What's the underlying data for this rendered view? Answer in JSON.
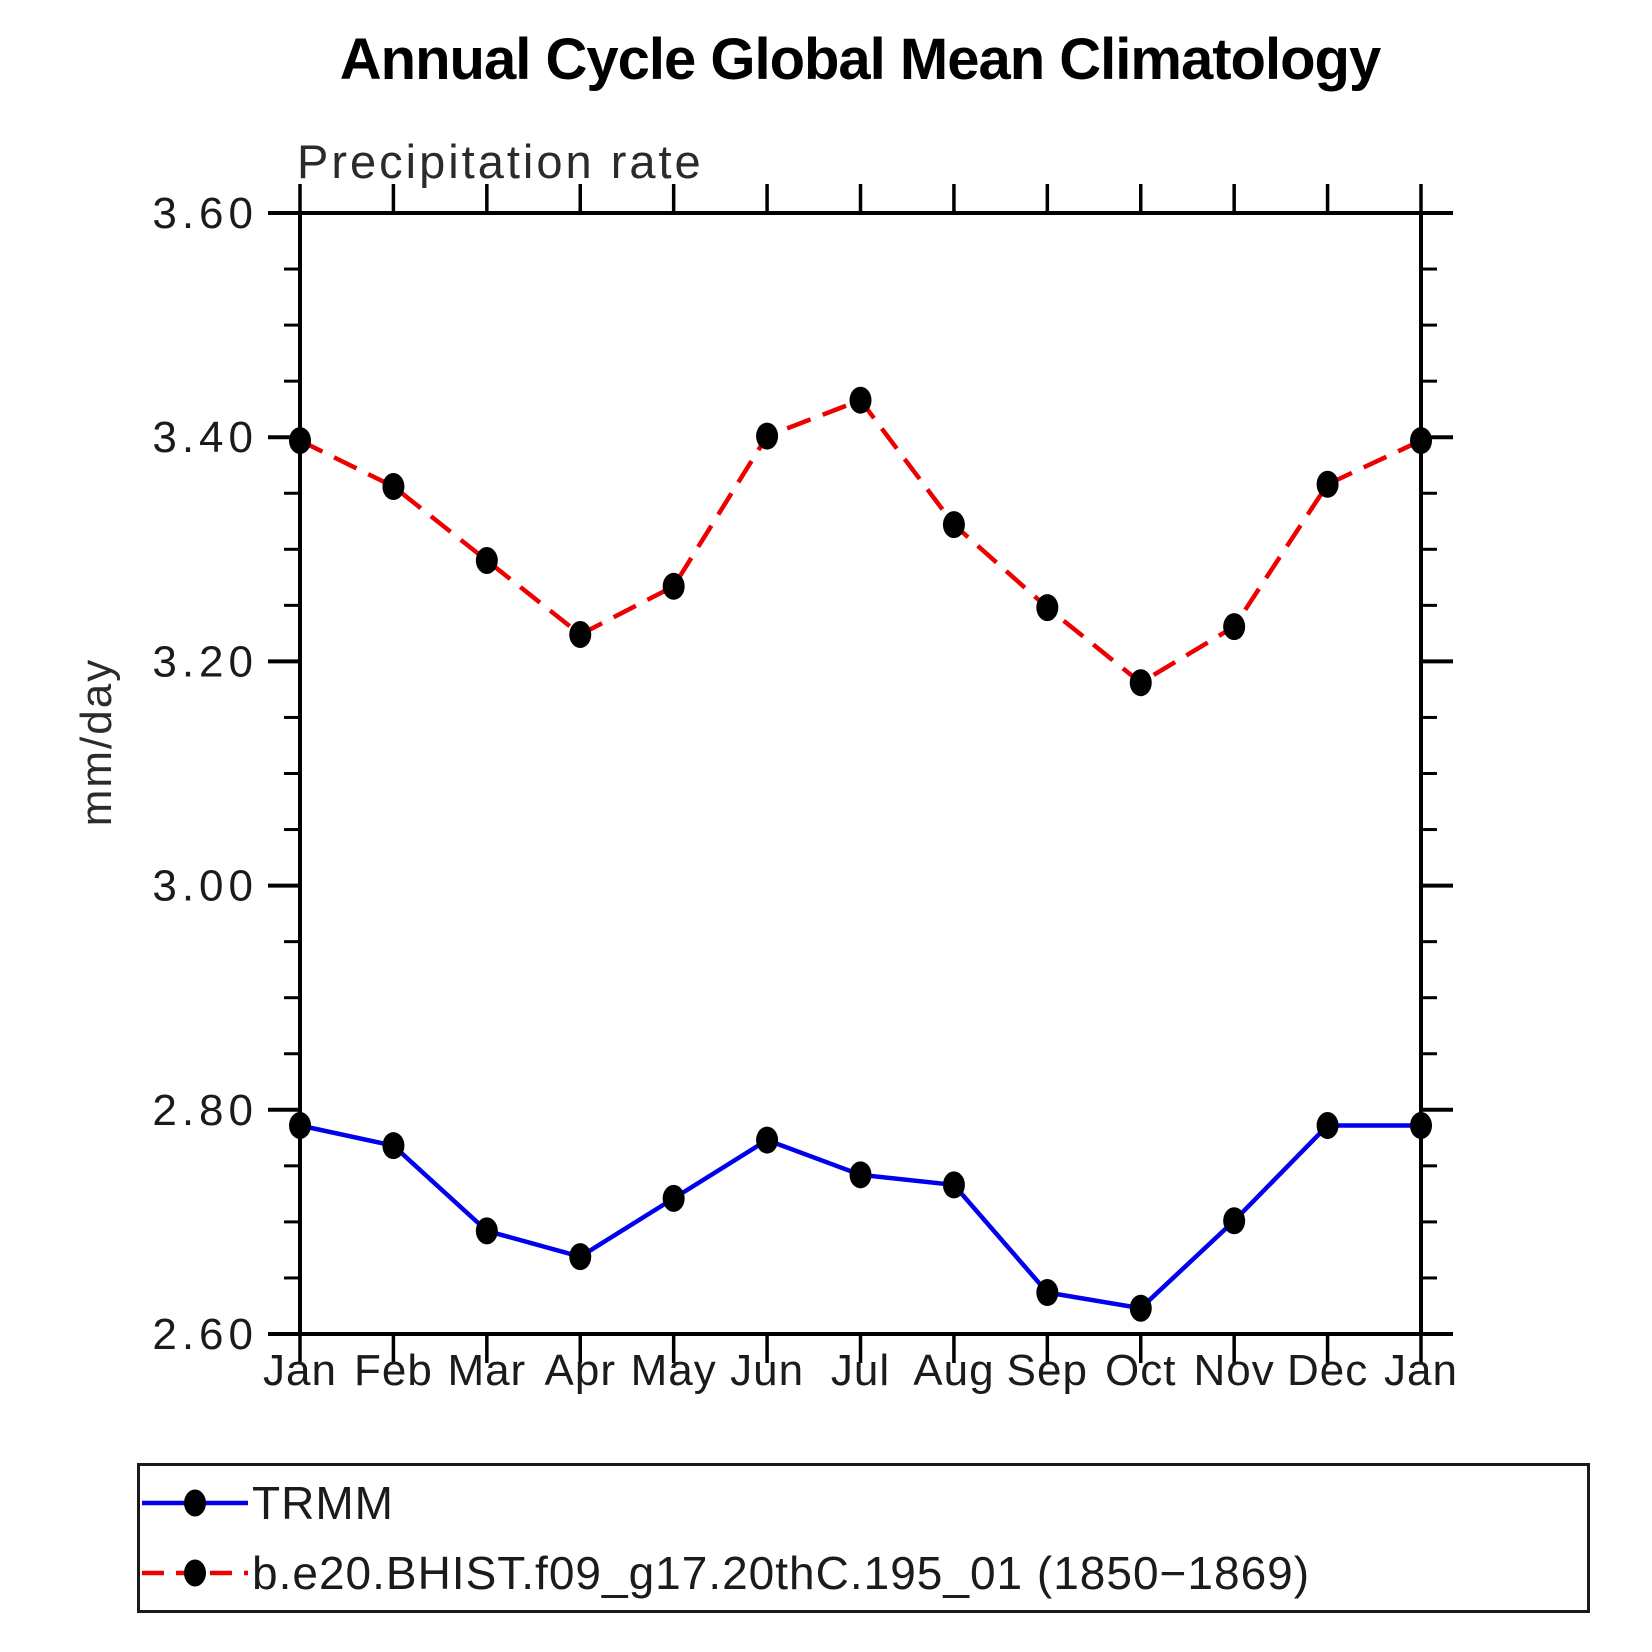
{
  "title": "Annual Cycle Global Mean Climatology",
  "subtitle": "Precipitation rate",
  "ylabel": "mm/day",
  "chart_data": {
    "type": "line",
    "x_categories": [
      "Jan",
      "Feb",
      "Mar",
      "Apr",
      "May",
      "Jun",
      "Jul",
      "Aug",
      "Sep",
      "Oct",
      "Nov",
      "Dec",
      "Jan"
    ],
    "ylim": [
      2.6,
      3.6
    ],
    "y_major_ticks": [
      2.6,
      2.8,
      3.0,
      3.2,
      3.4,
      3.6
    ],
    "y_tick_labels": [
      "2.60",
      "2.80",
      "3.00",
      "3.20",
      "3.40",
      "3.60"
    ],
    "y_minor_step": 0.05,
    "grid": false,
    "legend_position": "bottom",
    "colors": {
      "axis": "#000000",
      "marker": "#000000",
      "trmm_line": "#0000ee",
      "model_line": "#ee0000"
    },
    "series": [
      {
        "name": "TRMM",
        "style": "solid",
        "color": "#0000ee",
        "marker": "circle",
        "values": [
          2.786,
          2.768,
          2.692,
          2.669,
          2.721,
          2.773,
          2.742,
          2.733,
          2.637,
          2.623,
          2.701,
          2.786,
          2.786
        ]
      },
      {
        "name": "b.e20.BHIST.f09_g17.20thC.195_01 (1850−1869)",
        "style": "dashed",
        "color": "#ee0000",
        "marker": "circle",
        "values": [
          3.397,
          3.356,
          3.29,
          3.224,
          3.267,
          3.401,
          3.433,
          3.322,
          3.248,
          3.181,
          3.231,
          3.358,
          3.397
        ]
      }
    ]
  }
}
